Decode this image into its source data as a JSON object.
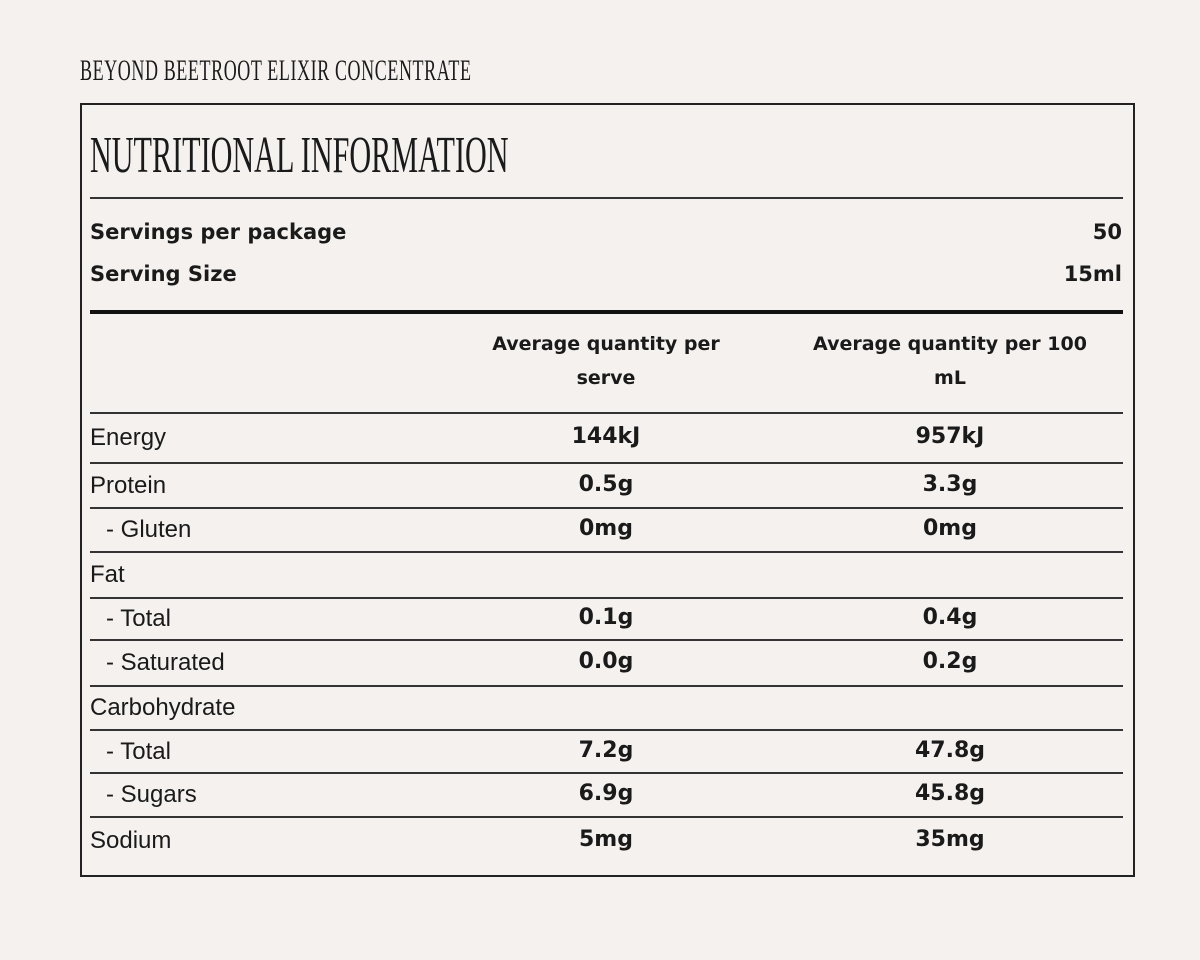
{
  "product_title": "BEYOND BEETROOT ELIXIR CONCENTRATE",
  "panel": {
    "title": "NUTRITIONAL INFORMATION",
    "servings": [
      {
        "label": "Servings per package",
        "value": "50"
      },
      {
        "label": "Serving Size",
        "value": "15ml"
      }
    ],
    "table": {
      "header": [
        "Average quantity per serve",
        "Average quantity per 100 mL"
      ],
      "rows": [
        {
          "label": "Energy",
          "serve": "144kJ",
          "per100": "957kJ"
        },
        {
          "label": "Protein",
          "serve": "0.5g",
          "per100": "3.3g"
        },
        {
          "label": "- Gluten",
          "serve": "0mg",
          "per100": "0mg"
        },
        {
          "label": "Fat"
        },
        {
          "label": "- Total",
          "serve": "0.1g",
          "per100": "0.4g"
        },
        {
          "label": "- Saturated",
          "serve": "0.0g",
          "per100": "0.2g"
        },
        {
          "label": "Carbohydrate"
        },
        {
          "label": "- Total",
          "serve": "7.2g",
          "per100": "47.8g"
        },
        {
          "label": "- Sugars",
          "serve": "6.9g",
          "per100": "45.8g"
        },
        {
          "label": "Sodium",
          "serve": "5mg",
          "per100": "35mg"
        }
      ]
    }
  }
}
